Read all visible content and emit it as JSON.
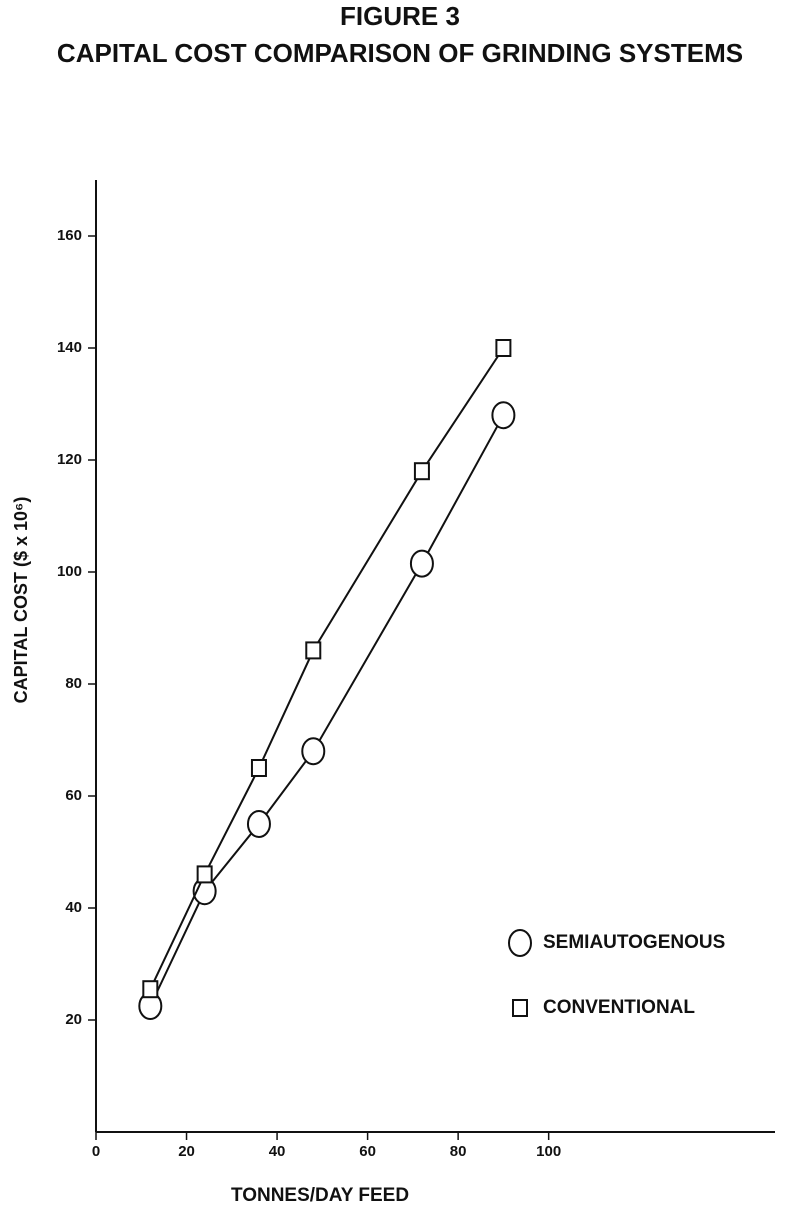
{
  "chart_data": {
    "type": "line",
    "title": "FIGURE 3",
    "subtitle": "CAPITAL COST COMPARISON OF GRINDING SYSTEMS",
    "x_label": "TONNES/DAY FEED",
    "y_label": "CAPITAL COST ($ x 10⁶)",
    "x": [
      12,
      24,
      36,
      48,
      72,
      90
    ],
    "series": [
      {
        "name": "SEMIAUTOGENOUS",
        "color": "#111111",
        "marker": "circle",
        "values": [
          22.5,
          43,
          55,
          68,
          101.5,
          128
        ]
      },
      {
        "name": "CONVENTIONAL",
        "color": "#111111",
        "marker": "square",
        "values": [
          25.5,
          46,
          65,
          86,
          118,
          140
        ]
      }
    ],
    "xlim": [
      0,
      150
    ],
    "xticks": [
      0,
      20,
      40,
      60,
      80,
      100
    ],
    "ylim": [
      0,
      170
    ],
    "yticks": [
      20,
      40,
      60,
      80,
      100,
      120,
      140,
      160
    ],
    "grid": false
  }
}
